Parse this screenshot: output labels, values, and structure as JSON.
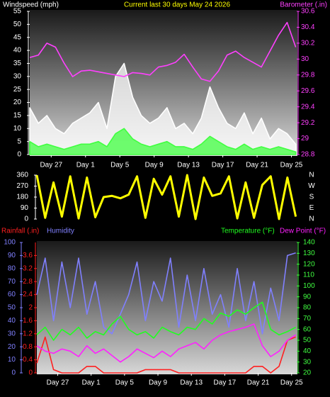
{
  "chart_data": [
    {
      "type": "line",
      "title": "Current last 30 days May 24 2026",
      "ylabel": "Windspeed (mph)",
      "y2label": "Barometer (.in)",
      "ycolor": "#ffffff",
      "y2color": "#ff40ff",
      "titlecolor": "#ffff00",
      "x": [
        0,
        1,
        2,
        3,
        4,
        5,
        6,
        7,
        8,
        9,
        10,
        11,
        12,
        13,
        14,
        15,
        16,
        17,
        18,
        19,
        20,
        21,
        22,
        23,
        24,
        25,
        26,
        27,
        28,
        29,
        30,
        31
      ],
      "xlim": [
        0,
        31.2
      ],
      "xticks": [
        {
          "value": 2.5,
          "label": "Day 27"
        },
        {
          "value": 6.5,
          "label": "Day 1"
        },
        {
          "value": 10.5,
          "label": "Day 5"
        },
        {
          "value": 14.5,
          "label": "Day 9"
        },
        {
          "value": 18.5,
          "label": "Day 13"
        },
        {
          "value": 22.5,
          "label": "Day 17"
        },
        {
          "value": 26.5,
          "label": "Day 21"
        },
        {
          "value": 30.5,
          "label": "Day 25"
        }
      ],
      "ylim": [
        0,
        55
      ],
      "yticks": [
        0,
        5,
        10,
        15,
        20,
        25,
        30,
        35,
        40,
        45,
        50,
        55
      ],
      "y2lim": [
        28.8,
        30.6
      ],
      "y2ticks": [
        28.8,
        29,
        29.2,
        29.4,
        29.6,
        29.8,
        30,
        30.2,
        30.4,
        30.6
      ],
      "series": [
        {
          "color": "#ffffff",
          "fill": true,
          "values": [
            18,
            12,
            15,
            10,
            8,
            12,
            14,
            16,
            20,
            10,
            30,
            35,
            22,
            15,
            12,
            14,
            18,
            10,
            12,
            8,
            14,
            26,
            18,
            12,
            10,
            16,
            8,
            14,
            6,
            10,
            8,
            4
          ]
        },
        {
          "color": "#40ff40",
          "fill": true,
          "values": [
            5,
            3,
            4,
            3,
            2,
            3,
            4,
            4,
            5,
            3,
            8,
            10,
            6,
            4,
            3,
            4,
            5,
            3,
            3,
            2,
            4,
            7,
            5,
            3,
            2,
            4,
            2,
            3,
            2,
            3,
            2,
            1
          ]
        },
        {
          "color": "#ff40ff",
          "axis": "y2",
          "values": [
            30.02,
            30.05,
            30.2,
            30.15,
            29.95,
            29.78,
            29.85,
            29.86,
            29.84,
            29.82,
            29.8,
            29.78,
            29.83,
            29.82,
            29.8,
            29.9,
            29.92,
            29.96,
            30.06,
            29.9,
            29.75,
            29.72,
            29.85,
            30.05,
            30.1,
            30.02,
            29.96,
            29.9,
            30.1,
            30.3,
            30.46,
            30.15
          ]
        }
      ]
    },
    {
      "type": "line",
      "ycolor": "#ffffff",
      "y2color": "#ffffff",
      "x": [
        0,
        1,
        2,
        3,
        4,
        5,
        6,
        7,
        8,
        9,
        10,
        11,
        12,
        13,
        14,
        15,
        16,
        17,
        18,
        19,
        20,
        21,
        22,
        23,
        24,
        25,
        26,
        27,
        28,
        29,
        30,
        31
      ],
      "xlim": [
        0,
        31.2
      ],
      "ylim": [
        0,
        360
      ],
      "yticks": [
        0,
        90,
        180,
        270,
        360
      ],
      "y2lim": [
        0,
        360
      ],
      "y2ticks": [
        {
          "value": 0,
          "label": "N"
        },
        {
          "value": 90,
          "label": "E"
        },
        {
          "value": 180,
          "label": "S"
        },
        {
          "value": 270,
          "label": "W"
        },
        {
          "value": 360,
          "label": "N"
        }
      ],
      "series": [
        {
          "color": "#ffff00",
          "values": [
            360,
            10,
            300,
            20,
            350,
            5,
            340,
            15,
            180,
            190,
            170,
            200,
            350,
            10,
            330,
            200,
            350,
            20,
            360,
            0,
            340,
            190,
            210,
            350,
            5,
            300,
            10,
            280,
            350,
            0,
            340,
            20
          ]
        }
      ]
    },
    {
      "type": "line",
      "ycolor": "#8080ff",
      "y2color": "#40ff40",
      "y3color": "#ff2020",
      "x": [
        0,
        1,
        2,
        3,
        4,
        5,
        6,
        7,
        8,
        9,
        10,
        11,
        12,
        13,
        14,
        15,
        16,
        17,
        18,
        19,
        20,
        21,
        22,
        23,
        24,
        25,
        26,
        27,
        28,
        29,
        30,
        31
      ],
      "xlim": [
        0,
        31.2
      ],
      "xticks": [
        {
          "value": 2.5,
          "label": "Day 27"
        },
        {
          "value": 6.5,
          "label": "Day 1"
        },
        {
          "value": 10.5,
          "label": "Day 5"
        },
        {
          "value": 14.5,
          "label": "Day 9"
        },
        {
          "value": 18.5,
          "label": "Day 13"
        },
        {
          "value": 22.5,
          "label": "Day 17"
        },
        {
          "value": 26.5,
          "label": "Day 21"
        },
        {
          "value": 30.5,
          "label": "Day 25"
        }
      ],
      "ylim": [
        0,
        100
      ],
      "yticks": [
        0,
        10,
        20,
        30,
        40,
        50,
        60,
        70,
        80,
        90,
        100
      ],
      "y2lim": [
        20,
        140
      ],
      "y2ticks": [
        20,
        30,
        40,
        50,
        60,
        70,
        80,
        90,
        100,
        110,
        120,
        130,
        140
      ],
      "y3lim": [
        0,
        4
      ],
      "y3ticks": [
        0,
        0.4,
        0.8,
        1.2,
        1.6,
        2,
        2.4,
        2.8,
        3.2,
        3.6
      ],
      "series": [
        {
          "name": "Rainfall (.in)",
          "color": "#ff2020",
          "axis": "y3",
          "values": [
            0.3,
            1.1,
            0.1,
            0,
            0,
            0,
            0.2,
            0.2,
            0,
            0,
            0,
            0,
            0,
            0.1,
            0.1,
            0.1,
            0.1,
            0,
            0,
            0,
            0,
            0,
            0,
            0,
            0,
            0,
            0.2,
            0.2,
            0,
            0.2,
            1.0,
            1.1
          ]
        },
        {
          "name": "Humidity",
          "color": "#8080ff",
          "values": [
            60,
            88,
            40,
            85,
            50,
            88,
            45,
            70,
            35,
            30,
            45,
            60,
            85,
            40,
            70,
            55,
            88,
            35,
            75,
            40,
            80,
            45,
            60,
            35,
            80,
            40,
            70,
            30,
            65,
            40,
            90,
            92
          ]
        },
        {
          "name": "Temperature (°F)",
          "color": "#20ff20",
          "axis": "y2",
          "values": [
            55,
            62,
            50,
            60,
            55,
            62,
            52,
            58,
            55,
            65,
            72,
            60,
            55,
            58,
            52,
            62,
            58,
            55,
            62,
            60,
            70,
            65,
            75,
            72,
            78,
            74,
            80,
            85,
            60,
            55,
            58,
            62
          ]
        },
        {
          "name": "Dew Point (°F)",
          "color": "#ff20ff",
          "axis": "y2",
          "values": [
            45,
            40,
            38,
            42,
            40,
            35,
            45,
            38,
            42,
            36,
            30,
            35,
            42,
            38,
            34,
            40,
            35,
            42,
            45,
            48,
            42,
            50,
            55,
            58,
            60,
            62,
            65,
            45,
            35,
            40,
            50,
            55
          ]
        }
      ]
    }
  ]
}
